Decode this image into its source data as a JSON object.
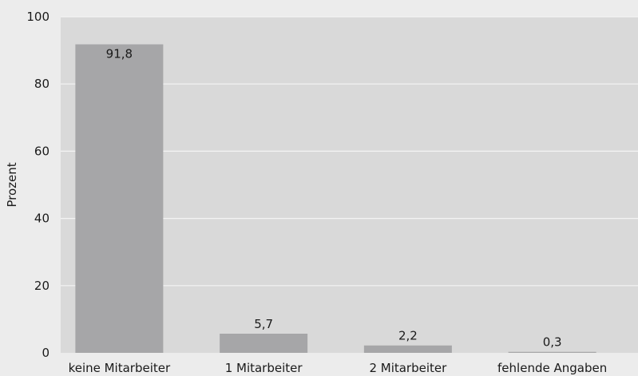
{
  "chart_data": {
    "type": "bar",
    "title": "",
    "xlabel": "",
    "ylabel": "Prozent",
    "categories": [
      "keine Mitarbeiter",
      "1 Mitarbeiter",
      "2 Mitarbeiter",
      "fehlende Angaben"
    ],
    "values": [
      91.8,
      5.7,
      2.2,
      0.3
    ],
    "value_labels": [
      "91,8",
      "5,7",
      "2,2",
      "0,3"
    ],
    "ylim": [
      0,
      100
    ],
    "yticks": [
      0,
      20,
      40,
      60,
      80,
      100
    ],
    "ytick_labels": [
      "0",
      "20",
      "40",
      "60",
      "80",
      "100"
    ],
    "grid": true,
    "legend": "none"
  },
  "colors": {
    "page_background": "#ececec",
    "plot_background": "#d9d9d9",
    "bar": "#a6a6a8",
    "gridline": "#f4f4f4",
    "text": "#1a1a1a"
  }
}
